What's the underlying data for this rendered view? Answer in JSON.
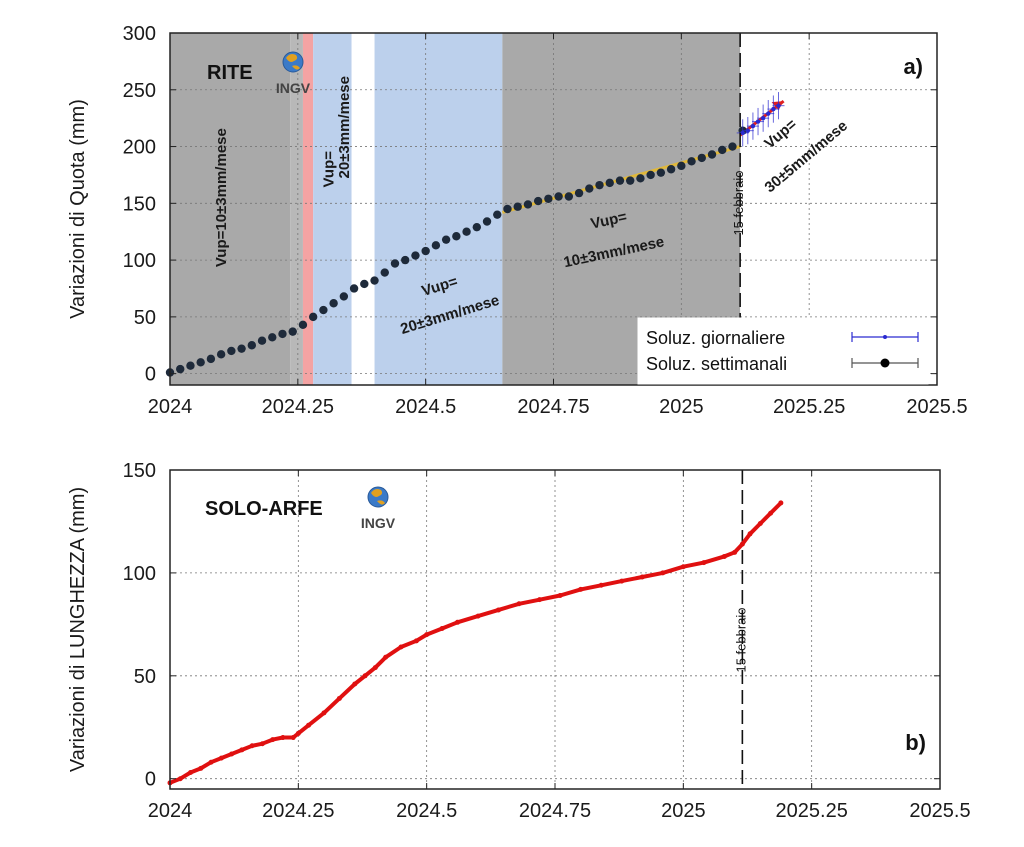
{
  "chart_data": [
    {
      "type": "scatter",
      "station": "RITE",
      "panel_label": "a)",
      "ylabel": "Variazioni di Quota (mm)",
      "xlim": [
        2024,
        2025.5
      ],
      "ylim": [
        -10,
        300
      ],
      "xticks": [
        2024,
        2024.25,
        2024.5,
        2024.75,
        2025,
        2025.25,
        2025.5
      ],
      "xtick_labels": [
        "2024",
        "2024.25",
        "2024.5",
        "2024.75",
        "2025",
        "2025.25",
        "2025.5"
      ],
      "yticks": [
        0,
        50,
        100,
        150,
        200,
        250,
        300
      ],
      "grid": true,
      "logo_text": "INGV",
      "shaded_periods": [
        {
          "x0": 2024.0,
          "x1": 2024.235,
          "color": "#a9a9a9"
        },
        {
          "x0": 2024.235,
          "x1": 2024.26,
          "color": "#b8b8b8"
        },
        {
          "x0": 2024.26,
          "x1": 2024.28,
          "color": "#f4a3a3"
        },
        {
          "x0": 2024.28,
          "x1": 2024.355,
          "color": "#bcd0ec"
        },
        {
          "x0": 2024.4,
          "x1": 2024.65,
          "color": "#bcd0ec"
        },
        {
          "x0": 2024.65,
          "x1": 2025.115,
          "color": "#a9a9a9"
        }
      ],
      "event_line": {
        "x": 2025.115,
        "label": "15 febbraio"
      },
      "annotations": [
        {
          "text": "Vup=10±3mm/mese",
          "x": 2024.11,
          "y": 155,
          "angle": -90
        },
        {
          "text": "Vup=",
          "x": 2024.32,
          "y": 180,
          "angle": -90
        },
        {
          "text": "20±3mm/mese",
          "x": 2024.35,
          "y": 217,
          "angle": -90
        },
        {
          "text": "Vup=",
          "x": 2024.53,
          "y": 73,
          "angle": -17
        },
        {
          "text": "20±3mm/mese",
          "x": 2024.55,
          "y": 48,
          "angle": -17
        },
        {
          "text": "Vup=",
          "x": 2024.86,
          "y": 131,
          "angle": -12
        },
        {
          "text": "10±3mm/mese",
          "x": 2024.87,
          "y": 103,
          "angle": -12
        },
        {
          "text": "Vup=",
          "x": 2025.2,
          "y": 208,
          "angle": -40
        },
        {
          "text": "30±5mm/mese",
          "x": 2025.25,
          "y": 188,
          "angle": -40
        }
      ],
      "trend_lines": [
        {
          "x0": 2024.65,
          "y0": 142,
          "x1": 2025.115,
          "y1": 200,
          "color": "#e0b83a"
        },
        {
          "x0": 2025.115,
          "y0": 210,
          "x1": 2025.2,
          "y1": 240,
          "color": "#e02020"
        }
      ],
      "legend": {
        "placement": "bottom-right",
        "entries": [
          {
            "label": "Soluz. giornaliere",
            "color": "#2a2ad0"
          },
          {
            "label": "Soluz. settimanali",
            "color": "#000000"
          }
        ]
      },
      "series": [
        {
          "name": "Soluz. settimanali",
          "marker_color": "#1e2a3a",
          "err": 3,
          "x": [
            2024.0,
            2024.02,
            2024.04,
            2024.06,
            2024.08,
            2024.1,
            2024.12,
            2024.14,
            2024.16,
            2024.18,
            2024.2,
            2024.22,
            2024.24,
            2024.26,
            2024.28,
            2024.3,
            2024.32,
            2024.34,
            2024.36,
            2024.38,
            2024.4,
            2024.42,
            2024.44,
            2024.46,
            2024.48,
            2024.5,
            2024.52,
            2024.54,
            2024.56,
            2024.58,
            2024.6,
            2024.62,
            2024.64,
            2024.66,
            2024.68,
            2024.7,
            2024.72,
            2024.74,
            2024.76,
            2024.78,
            2024.8,
            2024.82,
            2024.84,
            2024.86,
            2024.88,
            2024.9,
            2024.92,
            2024.94,
            2024.96,
            2024.98,
            2025.0,
            2025.02,
            2025.04,
            2025.06,
            2025.08,
            2025.1,
            2025.12
          ],
          "y": [
            1,
            4,
            7,
            10,
            13,
            17,
            20,
            22,
            25,
            29,
            32,
            35,
            37,
            43,
            50,
            56,
            62,
            68,
            75,
            79,
            82,
            89,
            97,
            100,
            104,
            108,
            113,
            118,
            121,
            125,
            129,
            134,
            140,
            145,
            147,
            149,
            152,
            154,
            156,
            156,
            159,
            163,
            166,
            168,
            170,
            170,
            172,
            175,
            177,
            180,
            183,
            187,
            190,
            193,
            197,
            200,
            214
          ]
        },
        {
          "name": "Soluz. giornaliere",
          "marker_color": "#2a2ad0",
          "err": 12,
          "x": [
            2025.12,
            2025.13,
            2025.14,
            2025.15,
            2025.16,
            2025.17,
            2025.18,
            2025.19
          ],
          "y": [
            212,
            214,
            218,
            222,
            225,
            229,
            233,
            236
          ]
        }
      ]
    },
    {
      "type": "line",
      "station": "SOLO-ARFE",
      "panel_label": "b)",
      "ylabel": "Variazioni di LUNGHEZZA (mm)",
      "xlim": [
        2024,
        2025.5
      ],
      "ylim": [
        -5,
        150
      ],
      "xticks": [
        2024,
        2024.25,
        2024.5,
        2024.75,
        2025,
        2025.25,
        2025.5
      ],
      "xtick_labels": [
        "2024",
        "2024.25",
        "2024.5",
        "2024.75",
        "2025",
        "2025.25",
        "2025.5"
      ],
      "yticks": [
        0,
        50,
        100,
        150
      ],
      "grid": true,
      "logo_text": "INGV",
      "event_line": {
        "x": 2025.115,
        "label": "15 febbraio"
      },
      "series": [
        {
          "color": "#e01010",
          "x": [
            2024.0,
            2024.02,
            2024.04,
            2024.06,
            2024.08,
            2024.1,
            2024.12,
            2024.14,
            2024.16,
            2024.18,
            2024.2,
            2024.22,
            2024.24,
            2024.25,
            2024.27,
            2024.3,
            2024.33,
            2024.36,
            2024.38,
            2024.4,
            2024.42,
            2024.45,
            2024.48,
            2024.5,
            2024.53,
            2024.56,
            2024.6,
            2024.64,
            2024.68,
            2024.72,
            2024.76,
            2024.8,
            2024.84,
            2024.88,
            2024.92,
            2024.96,
            2025.0,
            2025.04,
            2025.08,
            2025.1,
            2025.115,
            2025.13,
            2025.15,
            2025.17,
            2025.19
          ],
          "y": [
            -2,
            0,
            3,
            5,
            8,
            10,
            12,
            14,
            16,
            17,
            19,
            20,
            20,
            22,
            26,
            32,
            39,
            46,
            50,
            54,
            59,
            64,
            67,
            70,
            73,
            76,
            79,
            82,
            85,
            87,
            89,
            92,
            94,
            96,
            98,
            100,
            103,
            105,
            108,
            110,
            114,
            119,
            124,
            129,
            134
          ]
        }
      ]
    }
  ]
}
